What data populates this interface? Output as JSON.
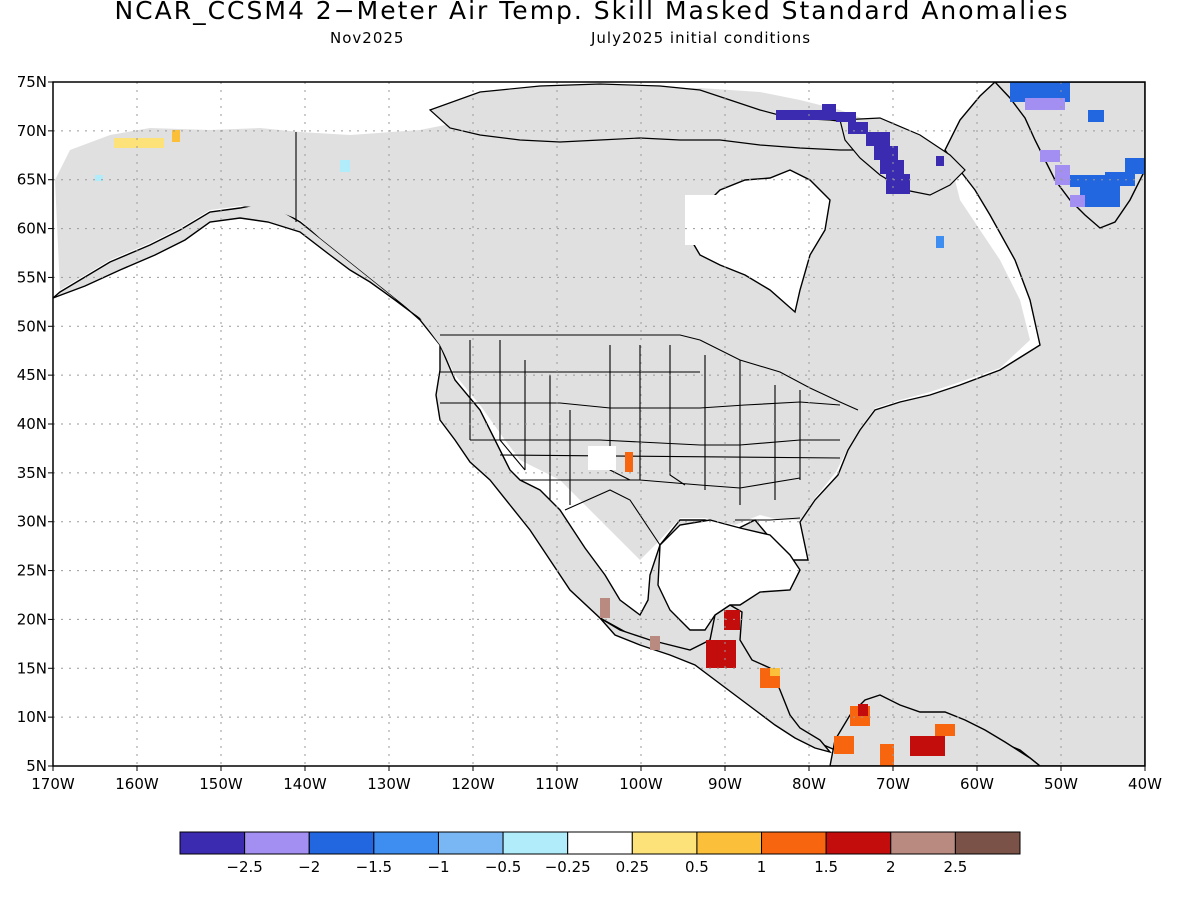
{
  "title": "NCAR_CCSM4 2−Meter Air Temp. Skill Masked Standard Anomalies",
  "subtitle_left": "Nov2025",
  "subtitle_right": "July2025 initial conditions",
  "map": {
    "lon_range": [
      -170,
      -40
    ],
    "lat_range": [
      5,
      75
    ],
    "grid": "dotted",
    "lat_labels": [
      "5N",
      "10N",
      "15N",
      "20N",
      "25N",
      "30N",
      "35N",
      "40N",
      "45N",
      "50N",
      "55N",
      "60N",
      "65N",
      "70N",
      "75N"
    ],
    "lon_labels": [
      "170W",
      "160W",
      "150W",
      "140W",
      "130W",
      "120W",
      "110W",
      "100W",
      "90W",
      "80W",
      "70W",
      "60W",
      "50W",
      "40W"
    ]
  },
  "legend": {
    "colors": [
      "#3b2bb0",
      "#a38ef2",
      "#2266e0",
      "#3d8ef0",
      "#79b6f4",
      "#b0ecfa",
      "#ffffff",
      "#fde27a",
      "#fbbf3a",
      "#f7650f",
      "#c30d0d",
      "#b88a80",
      "#7a5248"
    ],
    "labels": [
      "−2.5",
      "−2",
      "−1.5",
      "−1",
      "−0.5",
      "−0.25",
      "0.25",
      "0.5",
      "1",
      "1.5",
      "2",
      "2.5"
    ]
  }
}
